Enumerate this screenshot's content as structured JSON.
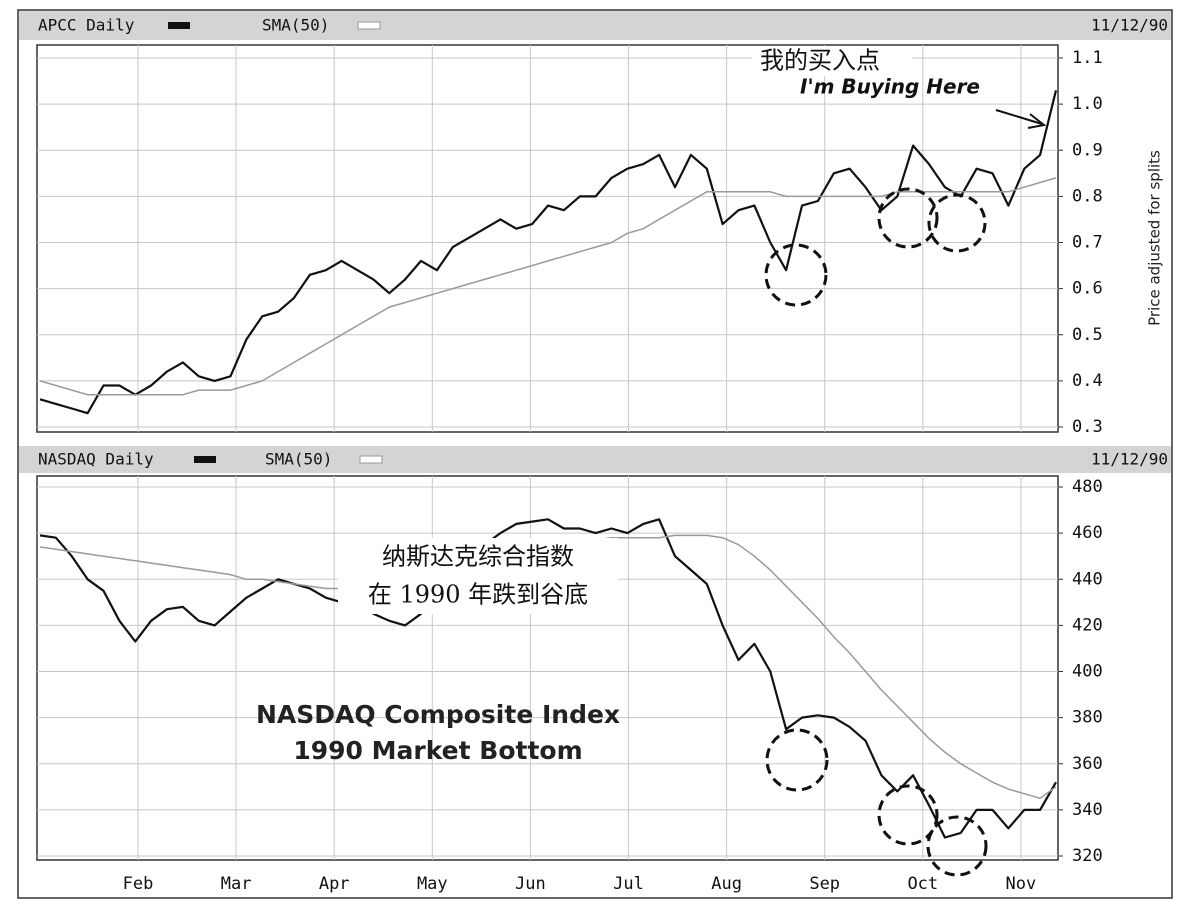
{
  "chart_data": [
    {
      "type": "line",
      "title": "APCC Daily",
      "date": "11/12/90",
      "y_label": "Price adjusted for splits",
      "series": [
        {
          "name": "APCC Daily",
          "color": "#111111",
          "values": [
            0.36,
            0.35,
            0.34,
            0.33,
            0.39,
            0.39,
            0.37,
            0.39,
            0.42,
            0.44,
            0.41,
            0.4,
            0.41,
            0.49,
            0.54,
            0.55,
            0.58,
            0.63,
            0.64,
            0.66,
            0.64,
            0.62,
            0.59,
            0.62,
            0.66,
            0.64,
            0.69,
            0.71,
            0.73,
            0.75,
            0.73,
            0.74,
            0.78,
            0.77,
            0.8,
            0.8,
            0.84,
            0.86,
            0.87,
            0.89,
            0.82,
            0.89,
            0.86,
            0.74,
            0.77,
            0.78,
            0.7,
            0.64,
            0.78,
            0.79,
            0.85,
            0.86,
            0.82,
            0.77,
            0.8,
            0.91,
            0.87,
            0.82,
            0.8,
            0.86,
            0.85,
            0.78,
            0.86,
            0.89,
            1.03
          ]
        },
        {
          "name": "SMA(50)",
          "color": "#9a9a9a",
          "values": [
            0.4,
            0.39,
            0.38,
            0.37,
            0.37,
            0.37,
            0.37,
            0.37,
            0.37,
            0.37,
            0.38,
            0.38,
            0.38,
            0.39,
            0.4,
            0.42,
            0.44,
            0.46,
            0.48,
            0.5,
            0.52,
            0.54,
            0.56,
            0.57,
            0.58,
            0.59,
            0.6,
            0.61,
            0.62,
            0.63,
            0.64,
            0.65,
            0.66,
            0.67,
            0.68,
            0.69,
            0.7,
            0.72,
            0.73,
            0.75,
            0.77,
            0.79,
            0.81,
            0.81,
            0.81,
            0.81,
            0.81,
            0.8,
            0.8,
            0.8,
            0.8,
            0.8,
            0.8,
            0.8,
            0.81,
            0.81,
            0.81,
            0.81,
            0.81,
            0.81,
            0.81,
            0.81,
            0.82,
            0.83,
            0.84
          ]
        }
      ],
      "ylim": [
        0.3,
        1.1
      ],
      "yticks": [
        0.3,
        0.4,
        0.5,
        0.6,
        0.7,
        0.8,
        0.9,
        {
          "value": 1,
          "label": "1.0"
        },
        1.1
      ],
      "annotations": [
        "我的买入点",
        "I'm Buying Here"
      ]
    },
    {
      "type": "line",
      "title": "NASDAQ Daily",
      "date": "11/12/90",
      "series": [
        {
          "name": "NASDAQ Daily",
          "color": "#111111",
          "values": [
            459,
            458,
            450,
            440,
            435,
            422,
            413,
            422,
            427,
            428,
            422,
            420,
            426,
            432,
            436,
            440,
            438,
            436,
            432,
            430,
            431,
            425,
            422,
            420,
            425,
            440,
            445,
            448,
            455,
            460,
            464,
            465,
            466,
            462,
            462,
            460,
            462,
            460,
            464,
            466,
            450,
            444,
            438,
            420,
            405,
            412,
            400,
            375,
            380,
            381,
            380,
            376,
            370,
            355,
            348,
            355,
            342,
            328,
            330,
            340,
            340,
            332,
            340,
            340,
            352
          ]
        },
        {
          "name": "SMA(50)",
          "color": "#9a9a9a",
          "values": [
            454,
            453,
            452,
            451,
            450,
            449,
            448,
            447,
            446,
            445,
            444,
            443,
            442,
            440,
            440,
            439,
            438,
            437,
            436,
            436,
            436,
            436,
            436,
            436,
            437,
            438,
            440,
            442,
            444,
            447,
            450,
            452,
            454,
            455,
            456,
            457,
            458,
            458,
            458,
            458,
            459,
            459,
            459,
            458,
            455,
            450,
            444,
            437,
            430,
            423,
            415,
            408,
            400,
            392,
            385,
            378,
            371,
            365,
            360,
            356,
            352,
            349,
            347,
            345,
            350
          ]
        }
      ],
      "ylim": [
        320,
        480
      ],
      "yticks": [
        320,
        340,
        360,
        380,
        400,
        420,
        440,
        460,
        480
      ],
      "xticks": [
        "Feb",
        "Mar",
        "Apr",
        "May",
        "Jun",
        "Jul",
        "Aug",
        "Sep",
        "Oct",
        "Nov"
      ],
      "annotations": [
        "纳斯达克综合指数",
        "在 1990 年跌到谷底",
        "NASDAQ Composite Index",
        "1990 Market Bottom"
      ]
    }
  ]
}
